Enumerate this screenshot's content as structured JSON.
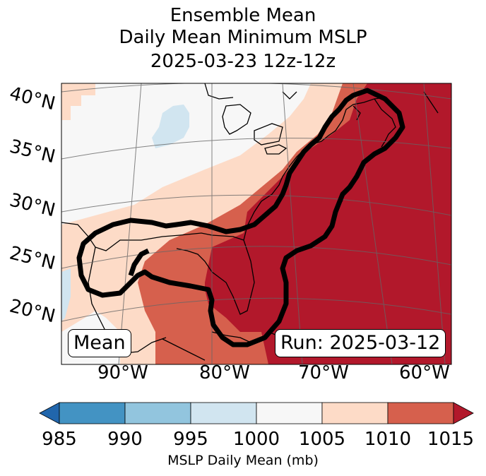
{
  "title": {
    "line1": "Ensemble Mean",
    "line2": "Daily Mean Minimum MSLP",
    "line3": "2025-03-23 12z-12z"
  },
  "map": {
    "lat_labels": [
      "40°N",
      "35°N",
      "30°N",
      "25°N",
      "20°N"
    ],
    "lon_labels": [
      "90°W",
      "80°W",
      "70°W",
      "60°W"
    ],
    "mean_label": "Mean",
    "run_label": "Run: 2025-03-12"
  },
  "colorbar": {
    "ticks": [
      "985",
      "990",
      "995",
      "1000",
      "1005",
      "1010",
      "1015"
    ],
    "label": "MSLP Daily Mean (mb)",
    "colors": [
      "#2166ac",
      "#4393c3",
      "#92c5de",
      "#d1e5f0",
      "#f7f7f7",
      "#fddbc7",
      "#d6604d",
      "#b2182b"
    ]
  }
}
